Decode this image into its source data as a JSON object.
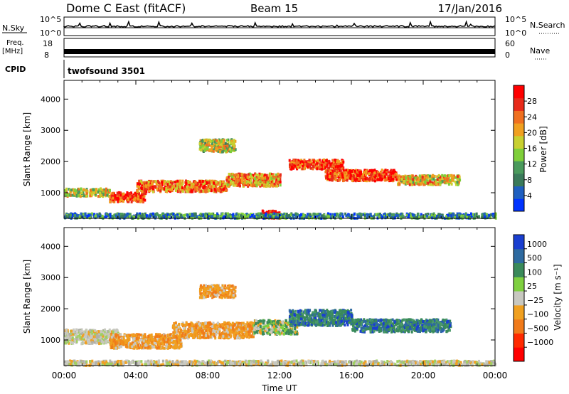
{
  "header": {
    "station": "Dome C East (fitACF)",
    "beam": "Beam 15",
    "date": "17/Jan/2016"
  },
  "top_panels": {
    "nsky_label": "N.Sky",
    "nsearch_label": "N.Search",
    "nsky_ticks": [
      "10^5",
      "10^0"
    ],
    "nsearch_ticks": [
      "10^5",
      "10^0"
    ],
    "freq_label_1": "Freq.",
    "freq_label_2": "[MHz]",
    "nave_label": "Nave",
    "freq_ticks": [
      "18",
      "8"
    ],
    "nave_ticks": [
      "60",
      "0"
    ],
    "cpid_label": "CPID",
    "cpid_value": "twofsound 3501"
  },
  "chart_data": [
    {
      "type": "heatmap",
      "title": "",
      "ylabel": "Slant Range [km]",
      "ylim": [
        180,
        4600
      ],
      "yticks": [
        "1000",
        "2000",
        "3000",
        "4000"
      ],
      "xlabel": "",
      "xlim_hours": [
        0,
        24
      ],
      "colorbar": {
        "label": "Power [dB]",
        "ticks": [
          "4",
          "8",
          "12",
          "16",
          "20",
          "24",
          "28"
        ],
        "range": [
          0,
          32
        ],
        "colors": [
          "#0033ff",
          "#1f5fc0",
          "#3a7a5a",
          "#4a9a5c",
          "#7fcf3a",
          "#c8d030",
          "#f0a020",
          "#f07020",
          "#e82a1a",
          "#ff0000"
        ]
      },
      "scatter_bands_km": [
        {
          "from_h": 0.0,
          "to_h": 2.5,
          "center": 1050,
          "width": 250,
          "level": 0.55
        },
        {
          "from_h": 2.5,
          "to_h": 4.5,
          "center": 900,
          "width": 300,
          "level": 0.85
        },
        {
          "from_h": 4.0,
          "to_h": 9.0,
          "center": 1250,
          "width": 350,
          "level": 0.75
        },
        {
          "from_h": 7.5,
          "to_h": 9.5,
          "center": 2550,
          "width": 400,
          "level": 0.5
        },
        {
          "from_h": 9.0,
          "to_h": 12.0,
          "center": 1450,
          "width": 400,
          "level": 0.7
        },
        {
          "from_h": 11.0,
          "to_h": 12.0,
          "center": 350,
          "width": 250,
          "level": 1.0
        },
        {
          "from_h": 12.5,
          "to_h": 15.5,
          "center": 1950,
          "width": 300,
          "level": 0.85
        },
        {
          "from_h": 14.5,
          "to_h": 18.5,
          "center": 1600,
          "width": 350,
          "level": 0.85
        },
        {
          "from_h": 18.5,
          "to_h": 22.0,
          "center": 1450,
          "width": 300,
          "level": 0.6
        },
        {
          "from_h": 0.0,
          "to_h": 24.0,
          "center": 300,
          "width": 150,
          "level": 0.25
        }
      ]
    },
    {
      "type": "heatmap",
      "title": "",
      "ylabel": "Slant Range [km]",
      "ylim": [
        180,
        4600
      ],
      "yticks": [
        "1000",
        "2000",
        "3000",
        "4000"
      ],
      "xlabel": "Time UT",
      "xticks": [
        "00:00",
        "04:00",
        "08:00",
        "12:00",
        "16:00",
        "20:00",
        "00:00"
      ],
      "xlim_hours": [
        0,
        24
      ],
      "colorbar": {
        "label": "Velocity [m s⁻¹]",
        "ticks": [
          "1000",
          "500",
          "100",
          "25",
          "−25",
          "−100",
          "−500",
          "−1000"
        ],
        "colors": [
          "#ff0000",
          "#ff2a00",
          "#f07a1a",
          "#f0a020",
          "#c8c8c0",
          "#7fd040",
          "#3a8a5a",
          "#2e6aa0",
          "#1a3fd0"
        ]
      },
      "scatter_bands_km": [
        {
          "from_h": 0.0,
          "to_h": 3.0,
          "center": 1150,
          "width": 450,
          "tone": "grey"
        },
        {
          "from_h": 2.5,
          "to_h": 6.5,
          "center": 1000,
          "width": 450,
          "tone": "orange"
        },
        {
          "from_h": 6.0,
          "to_h": 10.5,
          "center": 1350,
          "width": 500,
          "tone": "orange"
        },
        {
          "from_h": 7.5,
          "to_h": 9.5,
          "center": 2600,
          "width": 400,
          "tone": "orange"
        },
        {
          "from_h": 10.5,
          "to_h": 13.0,
          "center": 1450,
          "width": 450,
          "tone": "green"
        },
        {
          "from_h": 12.5,
          "to_h": 16.0,
          "center": 1750,
          "width": 500,
          "tone": "teal"
        },
        {
          "from_h": 16.0,
          "to_h": 21.5,
          "center": 1500,
          "width": 400,
          "tone": "teal"
        },
        {
          "from_h": 0.0,
          "to_h": 24.0,
          "center": 300,
          "width": 150,
          "tone": "grey"
        }
      ]
    }
  ]
}
